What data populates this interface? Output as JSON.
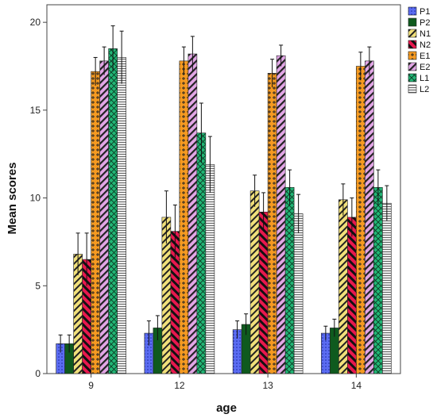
{
  "chart_data": {
    "type": "bar",
    "xlabel": "age",
    "ylabel": "Mean scores",
    "categories": [
      "9",
      "12",
      "13",
      "14"
    ],
    "ylim": [
      0,
      21
    ],
    "yticks": [
      0,
      5,
      10,
      15,
      20
    ],
    "error_bars": true,
    "legend_position": "right",
    "series": [
      {
        "name": "P1",
        "color": "#5b6cf2",
        "pattern": "dots",
        "values": [
          1.7,
          2.3,
          2.5,
          2.3
        ],
        "errors": [
          0.5,
          0.7,
          0.5,
          0.4
        ]
      },
      {
        "name": "P2",
        "color": "#0f5a1e",
        "pattern": "solid",
        "values": [
          1.7,
          2.6,
          2.8,
          2.6
        ],
        "errors": [
          0.5,
          0.7,
          0.6,
          0.5
        ]
      },
      {
        "name": "N1",
        "color": "#f1e07a",
        "pattern": "diag",
        "values": [
          6.8,
          8.9,
          10.4,
          9.9
        ],
        "errors": [
          1.2,
          1.5,
          0.9,
          0.9
        ]
      },
      {
        "name": "N2",
        "color": "#e8184e",
        "pattern": "diag",
        "values": [
          6.5,
          8.1,
          9.2,
          8.9
        ],
        "errors": [
          1.5,
          1.5,
          1.1,
          1.1
        ]
      },
      {
        "name": "E1",
        "color": "#f59a21",
        "pattern": "plus",
        "values": [
          17.2,
          17.8,
          17.1,
          17.5
        ],
        "errors": [
          0.8,
          0.8,
          0.8,
          0.8
        ]
      },
      {
        "name": "E2",
        "color": "#e2a6e6",
        "pattern": "diag",
        "values": [
          17.8,
          18.2,
          18.1,
          17.8
        ],
        "errors": [
          0.8,
          1.0,
          0.6,
          0.8
        ]
      },
      {
        "name": "L1",
        "color": "#22b676",
        "pattern": "cross",
        "values": [
          18.5,
          13.7,
          10.6,
          10.6
        ],
        "errors": [
          1.3,
          1.7,
          1.0,
          1.0
        ]
      },
      {
        "name": "L2",
        "color": "#eeeeee",
        "pattern": "hlines",
        "values": [
          18.0,
          11.9,
          9.1,
          9.7
        ],
        "errors": [
          1.5,
          1.6,
          1.1,
          1.0
        ]
      }
    ]
  }
}
